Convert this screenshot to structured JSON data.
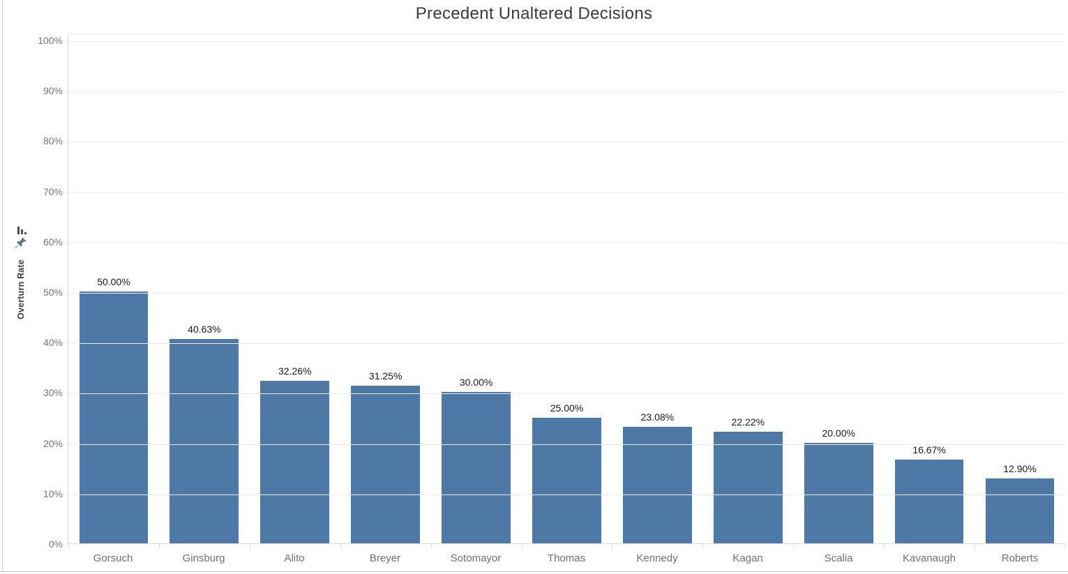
{
  "header": {
    "title": "Precedent Unaltered Decisions"
  },
  "icons": {
    "sort": "sort-bars-icon",
    "pin": "pushpin-icon"
  },
  "colors": {
    "bar": "#4e79a7",
    "title_text": "#343b46",
    "tick_text": "#757575",
    "category_text": "#6f6f6f",
    "value_label_text": "#181818",
    "gridline": "#ededed",
    "axis_line": "#d9d9d9",
    "icon": "#5e7288"
  },
  "y_axis": {
    "label": "Overturn Rate",
    "ticks": [
      "0%",
      "10%",
      "20%",
      "30%",
      "40%",
      "50%",
      "60%",
      "70%",
      "80%",
      "90%",
      "100%"
    ],
    "min": 0,
    "max": 100,
    "step": 10
  },
  "chart_data": {
    "type": "bar",
    "title": "Precedent Unaltered Decisions",
    "categories": [
      "Gorsuch",
      "Ginsburg",
      "Alito",
      "Breyer",
      "Sotomayor",
      "Thomas",
      "Kennedy",
      "Kagan",
      "Scalia",
      "Kavanaugh",
      "Roberts"
    ],
    "values": [
      50.0,
      40.63,
      32.26,
      31.25,
      30.0,
      25.0,
      23.08,
      22.22,
      20.0,
      16.67,
      12.9
    ],
    "value_labels": [
      "50.00%",
      "40.63%",
      "32.26%",
      "31.25%",
      "30.00%",
      "25.00%",
      "23.08%",
      "22.22%",
      "20.00%",
      "16.67%",
      "12.90%"
    ],
    "xlabel": "",
    "ylabel": "Overturn Rate",
    "ylim": [
      0,
      100
    ],
    "ytick_step": 10,
    "grid": true,
    "legend": false,
    "bar_color": "#4e79a7"
  }
}
